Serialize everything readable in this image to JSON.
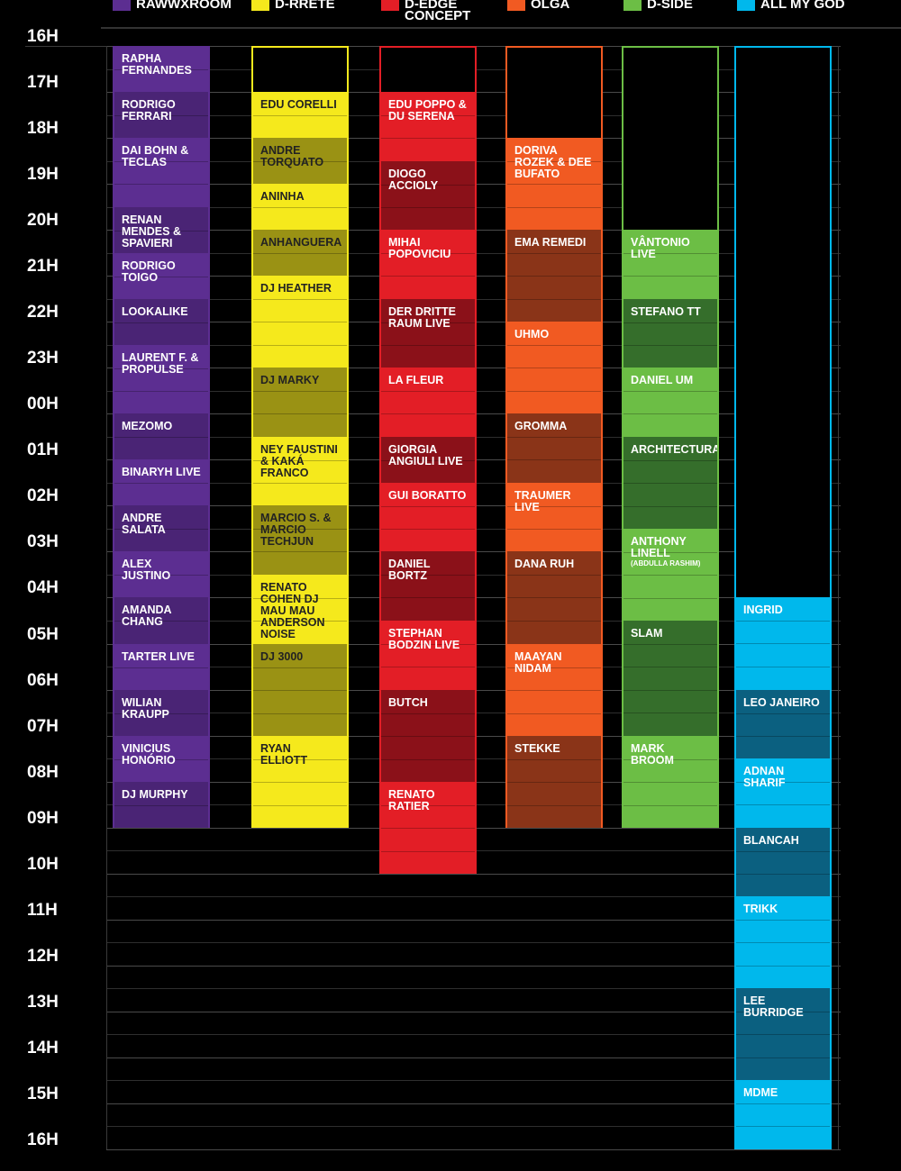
{
  "stages": [
    {
      "name": "RAWWxROOM",
      "color": "#5c2e91",
      "alt": "#4a2475",
      "text": "#ffffff",
      "slots": [
        {
          "s": 0,
          "e": 1,
          "label": "RAPHA FERNANDES"
        },
        {
          "s": 1,
          "e": 2,
          "label": "RODRIGO FERRARI"
        },
        {
          "s": 2,
          "e": 3.5,
          "label": "DAI BOHN & TECLAS"
        },
        {
          "s": 3.5,
          "e": 4.5,
          "label": "RENAN MENDES & SPAVIERI"
        },
        {
          "s": 4.5,
          "e": 5.5,
          "label": "RODRIGO TOIGO"
        },
        {
          "s": 5.5,
          "e": 6.5,
          "label": "LOOKALIKE"
        },
        {
          "s": 6.5,
          "e": 8,
          "label": "LAURENT F. & PROPULSE"
        },
        {
          "s": 8,
          "e": 9,
          "label": "MEZOMO"
        },
        {
          "s": 9,
          "e": 10,
          "label": "BINARYH LIVE"
        },
        {
          "s": 10,
          "e": 11,
          "label": "ANDRE SALATA"
        },
        {
          "s": 11,
          "e": 12,
          "label": "ALEX JUSTINO"
        },
        {
          "s": 12,
          "e": 13,
          "label": "AMANDA CHANG"
        },
        {
          "s": 13,
          "e": 14,
          "label": "TARTER LIVE"
        },
        {
          "s": 14,
          "e": 15,
          "label": "WILIAN KRAUPP"
        },
        {
          "s": 15,
          "e": 16,
          "label": "VINICIUS HONÓRIO"
        },
        {
          "s": 16,
          "e": 17,
          "label": "DJ MURPHY"
        }
      ]
    },
    {
      "name": "D-RRETE",
      "color": "#f5e91c",
      "alt": "#9a9214",
      "text": "#222222",
      "slots": [
        {
          "s": 1,
          "e": 2,
          "label": "EDU CORELLI"
        },
        {
          "s": 2,
          "e": 3,
          "label": "ANDRE TORQUATO"
        },
        {
          "s": 3,
          "e": 4,
          "label": "ANINHA"
        },
        {
          "s": 4,
          "e": 5,
          "label": "ANHANGUERA"
        },
        {
          "s": 5,
          "e": 7,
          "label": "DJ HEATHER"
        },
        {
          "s": 7,
          "e": 8.5,
          "label": "DJ MARKY"
        },
        {
          "s": 8.5,
          "e": 10,
          "label": "NEY FAUSTINI & KAKÁ FRANCO"
        },
        {
          "s": 10,
          "e": 11.5,
          "label": "MARCIO S. & MARCIO TECHJUN"
        },
        {
          "s": 11.5,
          "e": 13,
          "label": "RENATO COHEN DJ MAU MAU ANDERSON NOISE"
        },
        {
          "s": 13,
          "e": 15,
          "label": "DJ 3000"
        },
        {
          "s": 15,
          "e": 17,
          "label": "RYAN ELLIOTT"
        }
      ]
    },
    {
      "name": "D-EDGE CONCEPT",
      "color": "#e31e26",
      "alt": "#8b1119",
      "text": "#ffffff",
      "slots": [
        {
          "s": 1,
          "e": 2.5,
          "label": "EDU POPPO & DU SERENA"
        },
        {
          "s": 2.5,
          "e": 4,
          "label": "DIOGO ACCIOLY"
        },
        {
          "s": 4,
          "e": 5.5,
          "label": "MIHAI POPOVICIU"
        },
        {
          "s": 5.5,
          "e": 7,
          "label": "DER DRITTE RAUM LIVE"
        },
        {
          "s": 7,
          "e": 8.5,
          "label": "LA FLEUR"
        },
        {
          "s": 8.5,
          "e": 9.5,
          "label": "GIORGIA ANGIULI LIVE"
        },
        {
          "s": 9.5,
          "e": 11,
          "label": "GUI BORATTO"
        },
        {
          "s": 11,
          "e": 12.5,
          "label": "DANIEL BORTZ"
        },
        {
          "s": 12.5,
          "e": 14,
          "label": "STEPHAN BODZIN LIVE"
        },
        {
          "s": 14,
          "e": 16,
          "label": "BUTCH"
        },
        {
          "s": 16,
          "e": 18,
          "label": "RENATO RATIER"
        }
      ]
    },
    {
      "name": "OLGA",
      "color": "#f15a22",
      "alt": "#8a3418",
      "text": "#ffffff",
      "slots": [
        {
          "s": 2,
          "e": 4,
          "label": "DORIVA ROZEK & DEE BUFATO"
        },
        {
          "s": 4,
          "e": 6,
          "label": "EMA REMEDI"
        },
        {
          "s": 6,
          "e": 8,
          "label": "UHMO"
        },
        {
          "s": 8,
          "e": 9.5,
          "label": "GROMMA"
        },
        {
          "s": 9.5,
          "e": 11,
          "label": "TRAUMER LIVE"
        },
        {
          "s": 11,
          "e": 13,
          "label": "DANA RUH"
        },
        {
          "s": 13,
          "e": 15,
          "label": "MAAYAN NIDAM"
        },
        {
          "s": 15,
          "e": 17,
          "label": "STEKKE"
        }
      ]
    },
    {
      "name": "D-SIDE",
      "color": "#6cbe45",
      "alt": "#356e2b",
      "text": "#ffffff",
      "slots": [
        {
          "s": 4,
          "e": 5.5,
          "label": "VÂNTONIO LIVE"
        },
        {
          "s": 5.5,
          "e": 7,
          "label": "STEFANO TT"
        },
        {
          "s": 7,
          "e": 8.5,
          "label": "DANIEL UM"
        },
        {
          "s": 8.5,
          "e": 10.5,
          "label": "ARCHITECTURAL"
        },
        {
          "s": 10.5,
          "e": 12.5,
          "label": "ANTHONY LINELL",
          "sub": "(ABDULLA RASHIM)"
        },
        {
          "s": 12.5,
          "e": 15,
          "label": "SLAM"
        },
        {
          "s": 15,
          "e": 17,
          "label": "MARK BROOM"
        }
      ]
    },
    {
      "name": "ALL MY GOD",
      "color": "#00b8ec",
      "alt": "#0b6080",
      "text": "#ffffff",
      "slots": [
        {
          "s": 12,
          "e": 14,
          "label": "INGRID"
        },
        {
          "s": 14,
          "e": 15.5,
          "label": "LEO JANEIRO"
        },
        {
          "s": 15.5,
          "e": 17,
          "label": "ADNAN SHARIF"
        },
        {
          "s": 17,
          "e": 18.5,
          "label": "BLANCAH"
        },
        {
          "s": 18.5,
          "e": 20.5,
          "label": "TRIKK"
        },
        {
          "s": 20.5,
          "e": 22.5,
          "label": "LEE BURRIDGE"
        },
        {
          "s": 22.5,
          "e": 24,
          "label": "MDME"
        }
      ]
    }
  ],
  "hours": [
    "16H",
    "17H",
    "18H",
    "19H",
    "20H",
    "21H",
    "22H",
    "23H",
    "00H",
    "01H",
    "02H",
    "03H",
    "04H",
    "05H",
    "06H",
    "07H",
    "08H",
    "09H",
    "10H",
    "11H",
    "12H",
    "13H",
    "14H",
    "15H",
    "16H"
  ]
}
